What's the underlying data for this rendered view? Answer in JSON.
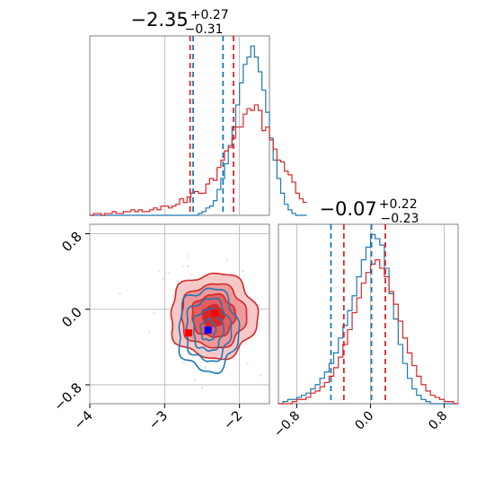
{
  "colors": {
    "blue": "#1f77b4",
    "red": "#d62728",
    "red_fill": "#e56b6b",
    "red_dark": "#c81e1e",
    "marker_blue": "#0000ff",
    "marker_red": "#ff0000",
    "grid": "#b0b0b0",
    "frame": "#7f7f7f"
  },
  "chart_data": [
    {
      "type": "step-histogram",
      "panel": "top-left",
      "title": "−2.35",
      "title_sup": "+0.27",
      "title_sub": "−0.31",
      "xlim": [
        -4.0,
        -1.6
      ],
      "grid": true,
      "vlines": {
        "blue": [
          -2.62,
          -2.22
        ],
        "red": [
          -2.66,
          -2.08
        ]
      },
      "series": [
        {
          "color": "blue",
          "bin_start": -4.0,
          "bin_width": 0.05,
          "counts": [
            0,
            0,
            0,
            0,
            0,
            0,
            0,
            0,
            0,
            0,
            0,
            0,
            0,
            0,
            0,
            0,
            0,
            0,
            0,
            0,
            0,
            0,
            0,
            0,
            0,
            0,
            0,
            0,
            0,
            0.01,
            0.02,
            0.04,
            0.05,
            0.08,
            0.14,
            0.2,
            0.28,
            0.38,
            0.48,
            0.6,
            0.72,
            0.82,
            0.86,
            0.92,
            0.86,
            0.78,
            0.68,
            0.56,
            0.42,
            0.3,
            0.2,
            0.12,
            0.06,
            0.03,
            0.01,
            0,
            0,
            0
          ]
        },
        {
          "color": "red",
          "bin_start": -4.0,
          "bin_width": 0.05,
          "counts": [
            0,
            0.01,
            0.01,
            0,
            0.01,
            0.01,
            0.02,
            0.01,
            0.01,
            0.02,
            0.02,
            0.03,
            0.02,
            0.03,
            0.02,
            0.02,
            0.03,
            0.04,
            0.03,
            0.05,
            0.05,
            0.04,
            0.05,
            0.06,
            0.09,
            0.07,
            0.1,
            0.12,
            0.13,
            0.12,
            0.12,
            0.17,
            0.2,
            0.19,
            0.26,
            0.3,
            0.35,
            0.37,
            0.42,
            0.48,
            0.48,
            0.55,
            0.58,
            0.57,
            0.6,
            0.57,
            0.46,
            0.48,
            0.41,
            0.36,
            0.3,
            0.29,
            0.24,
            0.22,
            0.18,
            0.12,
            0.09,
            0.07
          ]
        }
      ]
    },
    {
      "type": "step-histogram",
      "panel": "bottom-right",
      "title": "−0.07",
      "title_sup": "+0.22",
      "title_sub": "−0.23",
      "xlim": [
        -1.0,
        0.95
      ],
      "xticks": [
        "−0.8",
        "0.0",
        "0.8"
      ],
      "xtick_values": [
        -0.8,
        0.0,
        0.8
      ],
      "grid": true,
      "vlines": {
        "blue": [
          -0.43,
          0.01
        ],
        "red": [
          -0.29,
          0.16
        ]
      },
      "series": [
        {
          "color": "blue",
          "bin_start": -1.0,
          "bin_width": 0.05,
          "counts": [
            0,
            0.01,
            0.02,
            0.02,
            0.03,
            0.04,
            0.05,
            0.07,
            0.09,
            0.12,
            0.15,
            0.19,
            0.24,
            0.31,
            0.37,
            0.44,
            0.51,
            0.6,
            0.68,
            0.74,
            0.8,
            0.78,
            0.75,
            0.64,
            0.52,
            0.4,
            0.28,
            0.19,
            0.12,
            0.07,
            0.04,
            0.02,
            0.01,
            0,
            0,
            0,
            0,
            0,
            0
          ]
        },
        {
          "color": "red",
          "bin_start": -1.0,
          "bin_width": 0.05,
          "counts": [
            0,
            0,
            0,
            0.01,
            0.02,
            0.02,
            0.03,
            0.05,
            0.06,
            0.08,
            0.1,
            0.13,
            0.17,
            0.22,
            0.28,
            0.35,
            0.43,
            0.5,
            0.57,
            0.62,
            0.66,
            0.68,
            0.64,
            0.6,
            0.53,
            0.47,
            0.39,
            0.31,
            0.24,
            0.18,
            0.13,
            0.09,
            0.06,
            0.04,
            0.03,
            0.02,
            0.01,
            0.01,
            0
          ]
        }
      ]
    },
    {
      "type": "contour",
      "panel": "bottom-left",
      "xlim": [
        -4.0,
        -1.6
      ],
      "ylim": [
        -1.0,
        0.9
      ],
      "xticks": [
        "−4",
        "−3",
        "−2"
      ],
      "xtick_values": [
        -4,
        -3,
        -2
      ],
      "yticks": [
        "0.8",
        "0.0",
        "−0.8"
      ],
      "ytick_values": [
        0.8,
        0.0,
        -0.8
      ],
      "grid": true,
      "series": [
        {
          "color": "red",
          "center": [
            -2.35,
            -0.07
          ],
          "sigma": [
            0.29,
            0.225
          ],
          "levels": [
            0.5,
            1.0,
            1.5,
            2.0
          ],
          "filled": true
        },
        {
          "color": "blue",
          "center": [
            -2.42,
            -0.22
          ],
          "sigma": [
            0.2,
            0.22
          ],
          "levels": [
            0.5,
            1.0,
            1.5,
            2.0
          ],
          "filled": false
        }
      ],
      "markers": [
        {
          "color": "marker_red",
          "x": -2.68,
          "y": -0.25
        },
        {
          "color": "marker_red",
          "x": -2.33,
          "y": -0.04
        },
        {
          "color": "marker_blue",
          "x": -2.42,
          "y": -0.22
        }
      ]
    }
  ]
}
